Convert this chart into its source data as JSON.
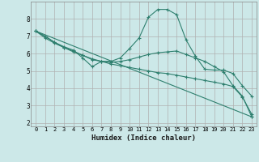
{
  "xlabel": "Humidex (Indice chaleur)",
  "background_color": "#cce8e8",
  "grid_color": "#b0b0b0",
  "line_color": "#2e7f6e",
  "xlim": [
    -0.5,
    23.5
  ],
  "ylim": [
    1.8,
    9.0
  ],
  "xticks": [
    0,
    1,
    2,
    3,
    4,
    5,
    6,
    7,
    8,
    9,
    10,
    11,
    12,
    13,
    14,
    15,
    16,
    17,
    18,
    19,
    20,
    21,
    22,
    23
  ],
  "yticks": [
    2,
    3,
    4,
    5,
    6,
    7,
    8
  ],
  "lines": [
    {
      "x": [
        0,
        1,
        2,
        3,
        4,
        5,
        6,
        7,
        8,
        9,
        10,
        11,
        12,
        13,
        14,
        15,
        16,
        17,
        18,
        19,
        20,
        21,
        22,
        23
      ],
      "y": [
        7.3,
        7.0,
        6.65,
        6.4,
        6.2,
        5.75,
        5.25,
        5.55,
        5.55,
        5.75,
        6.3,
        6.9,
        8.1,
        8.55,
        8.55,
        8.25,
        6.8,
        5.85,
        5.1,
        5.05,
        5.05,
        4.85,
        4.15,
        3.55
      ]
    },
    {
      "x": [
        0,
        1,
        2,
        3,
        4,
        5,
        6,
        7,
        8,
        9,
        10,
        11,
        12,
        13,
        14,
        15,
        16,
        17,
        18,
        19,
        20,
        21,
        22,
        23
      ],
      "y": [
        7.3,
        6.9,
        6.6,
        6.35,
        6.1,
        5.9,
        5.7,
        5.55,
        5.4,
        5.3,
        5.2,
        5.1,
        5.0,
        4.9,
        4.85,
        4.75,
        4.65,
        4.55,
        4.45,
        4.35,
        4.25,
        4.1,
        3.5,
        2.5
      ]
    },
    {
      "x": [
        0,
        23
      ],
      "y": [
        7.3,
        2.35
      ]
    },
    {
      "x": [
        0,
        1,
        2,
        3,
        4,
        5,
        6,
        7,
        8,
        9,
        10,
        11,
        12,
        13,
        14,
        15,
        16,
        17,
        18,
        19,
        20,
        21,
        22,
        23
      ],
      "y": [
        7.3,
        7.0,
        6.65,
        6.35,
        6.15,
        5.9,
        5.65,
        5.55,
        5.5,
        5.55,
        5.65,
        5.8,
        5.95,
        6.05,
        6.1,
        6.15,
        5.95,
        5.75,
        5.55,
        5.25,
        4.95,
        4.15,
        3.55,
        2.35
      ]
    }
  ]
}
